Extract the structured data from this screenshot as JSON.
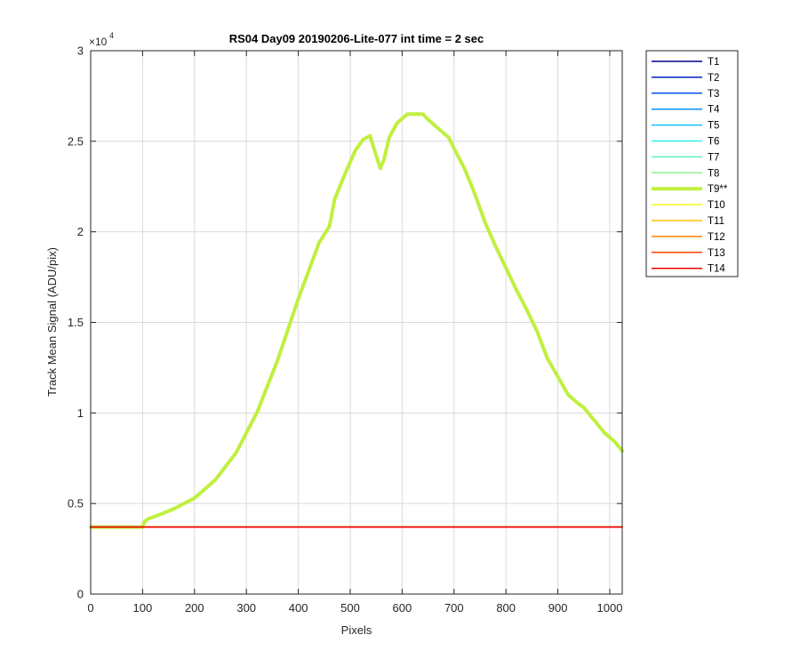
{
  "chart_data": {
    "type": "line",
    "title": "RS04 Day09 20190206-Lite-077 int time = 2 sec",
    "xlabel": "Pixels",
    "ylabel": "Track Mean Signal (ADU/pix)",
    "y_exponent_base": "×10",
    "y_exponent_power": "4",
    "xlim": [
      0,
      1024
    ],
    "ylim": [
      0,
      30000
    ],
    "xticks": [
      0,
      100,
      200,
      300,
      400,
      500,
      600,
      700,
      800,
      900,
      1000
    ],
    "yticks": [
      0,
      5000,
      10000,
      15000,
      20000,
      25000,
      30000
    ],
    "ytick_labels": [
      "0",
      "0.5",
      "1",
      "1.5",
      "2",
      "2.5",
      "3"
    ],
    "grid": true,
    "legend_position": "outside-right-top",
    "series": [
      {
        "name": "T1",
        "color": "#00008f",
        "width": 1.5,
        "x": [
          0,
          1024
        ],
        "y": [
          3700,
          3700
        ]
      },
      {
        "name": "T2",
        "color": "#0020bf",
        "width": 1.5,
        "x": [
          0,
          1024
        ],
        "y": [
          3700,
          3700
        ]
      },
      {
        "name": "T3",
        "color": "#0050ef",
        "width": 1.5,
        "x": [
          0,
          1024
        ],
        "y": [
          3700,
          3700
        ]
      },
      {
        "name": "T4",
        "color": "#0090ff",
        "width": 1.5,
        "x": [
          0,
          1024
        ],
        "y": [
          3700,
          3700
        ]
      },
      {
        "name": "T5",
        "color": "#10c0ff",
        "width": 1.5,
        "x": [
          0,
          1024
        ],
        "y": [
          3700,
          3700
        ]
      },
      {
        "name": "T6",
        "color": "#30f0f0",
        "width": 1.5,
        "x": [
          0,
          1024
        ],
        "y": [
          3700,
          3700
        ]
      },
      {
        "name": "T7",
        "color": "#60f0c8",
        "width": 1.5,
        "x": [
          0,
          1024
        ],
        "y": [
          3700,
          3700
        ]
      },
      {
        "name": "T8",
        "color": "#8ff090",
        "width": 1.5,
        "x": [
          0,
          1024
        ],
        "y": [
          3700,
          3700
        ]
      },
      {
        "name": "T9**",
        "color": "#bff040",
        "width": 4,
        "x": [
          0,
          100,
          103,
          110,
          130,
          160,
          200,
          240,
          280,
          320,
          360,
          400,
          440,
          460,
          470,
          490,
          510,
          525,
          538,
          548,
          558,
          565,
          575,
          590,
          610,
          620,
          640,
          650,
          670,
          690,
          700,
          720,
          740,
          760,
          780,
          800,
          820,
          840,
          860,
          880,
          900,
          920,
          940,
          950,
          970,
          990,
          1010,
          1024
        ],
        "y": [
          3700,
          3700,
          3950,
          4150,
          4350,
          4700,
          5300,
          6300,
          7800,
          10000,
          12900,
          16300,
          19400,
          20300,
          21800,
          23200,
          24500,
          25100,
          25300,
          24400,
          23500,
          24000,
          25200,
          26000,
          26500,
          26500,
          26500,
          26200,
          25700,
          25200,
          24600,
          23500,
          22100,
          20500,
          19200,
          18000,
          16800,
          15700,
          14500,
          13000,
          12000,
          11000,
          10500,
          10300,
          9600,
          8900,
          8400,
          7900
        ]
      },
      {
        "name": "T10",
        "color": "#f8f820",
        "width": 1.5,
        "x": [
          0,
          1024
        ],
        "y": [
          3700,
          3700
        ]
      },
      {
        "name": "T11",
        "color": "#ffc000",
        "width": 1.5,
        "x": [
          0,
          1024
        ],
        "y": [
          3700,
          3700
        ]
      },
      {
        "name": "T12",
        "color": "#ff8000",
        "width": 1.5,
        "x": [
          0,
          1024
        ],
        "y": [
          3700,
          3700
        ]
      },
      {
        "name": "T13",
        "color": "#ff4000",
        "width": 1.5,
        "x": [
          0,
          1024
        ],
        "y": [
          3700,
          3700
        ]
      },
      {
        "name": "T14",
        "color": "#ee0000",
        "width": 1.5,
        "x": [
          0,
          1024
        ],
        "y": [
          3700,
          3700
        ]
      }
    ]
  }
}
